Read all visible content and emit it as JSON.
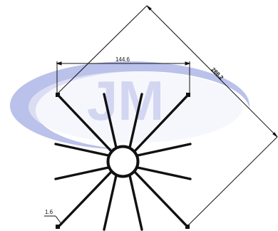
{
  "diagram": {
    "dimensions": {
      "width_label": "144.6",
      "diagonal_label": "288.2",
      "thickness_label": "1.6"
    },
    "watermark": {
      "logo_text": "JM",
      "description": "blue ellipse logo with JM letters"
    },
    "colors": {
      "line": "#111111",
      "watermark_blue": "#3b4fc4",
      "watermark_light": "#d8dcf2"
    }
  }
}
